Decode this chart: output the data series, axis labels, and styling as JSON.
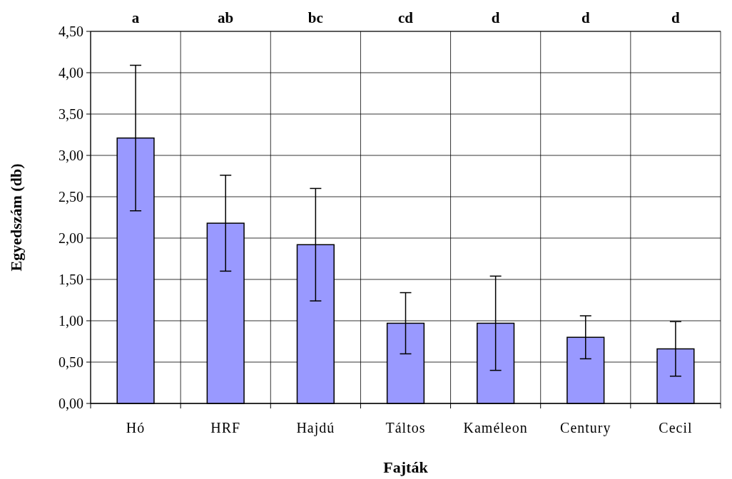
{
  "chart_data": {
    "type": "bar",
    "xlabel": "Fajták",
    "ylabel": "Egyedszám (db)",
    "categories": [
      "Hó",
      "HRF",
      "Hajdú",
      "Táltos",
      "Kaméleon",
      "Century",
      "Cecil"
    ],
    "values": [
      3.21,
      2.18,
      1.92,
      0.97,
      0.97,
      0.8,
      0.66
    ],
    "errors": [
      0.88,
      0.58,
      0.68,
      0.37,
      0.57,
      0.26,
      0.33
    ],
    "color": "#9999ff",
    "ylim": [
      0,
      4.5
    ],
    "yticks": [
      {
        "value": 0,
        "label": "0,00"
      },
      {
        "value": 0.5,
        "label": "0,50"
      },
      {
        "value": 1,
        "label": "1,00"
      },
      {
        "value": 1.5,
        "label": "1,50"
      },
      {
        "value": 2,
        "label": "2,00"
      },
      {
        "value": 2.5,
        "label": "2,50"
      },
      {
        "value": 3,
        "label": "3,00"
      },
      {
        "value": 3.5,
        "label": "3,50"
      },
      {
        "value": 4,
        "label": "4,00"
      },
      {
        "value": 4.5,
        "label": "4,50"
      }
    ],
    "grid": true,
    "annotations": [
      "a",
      "ab",
      "bc",
      "cd",
      "d",
      "d",
      "d"
    ]
  }
}
